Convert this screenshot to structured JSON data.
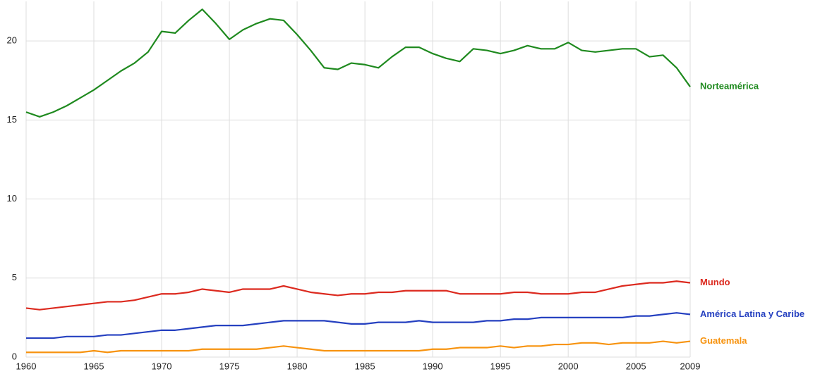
{
  "chart_data": {
    "type": "line",
    "x": [
      1960,
      1961,
      1962,
      1963,
      1964,
      1965,
      1966,
      1967,
      1968,
      1969,
      1970,
      1971,
      1972,
      1973,
      1974,
      1975,
      1976,
      1977,
      1978,
      1979,
      1980,
      1981,
      1982,
      1983,
      1984,
      1985,
      1986,
      1987,
      1988,
      1989,
      1990,
      1991,
      1992,
      1993,
      1994,
      1995,
      1996,
      1997,
      1998,
      1999,
      2000,
      2001,
      2002,
      2003,
      2004,
      2005,
      2006,
      2007,
      2008,
      2009
    ],
    "series": [
      {
        "name": "Norteamérica",
        "color": "#1f8a1f",
        "values": [
          15.5,
          15.2,
          15.5,
          15.9,
          16.4,
          16.9,
          17.5,
          18.1,
          18.6,
          19.3,
          20.6,
          20.5,
          21.3,
          22.0,
          21.1,
          20.1,
          20.7,
          21.1,
          21.4,
          21.3,
          20.4,
          19.4,
          18.3,
          18.2,
          18.6,
          18.5,
          18.3,
          19.0,
          19.6,
          19.6,
          19.2,
          18.9,
          18.7,
          19.5,
          19.4,
          19.2,
          19.4,
          19.7,
          19.5,
          19.5,
          19.9,
          19.4,
          19.3,
          19.4,
          19.5,
          19.5,
          19.0,
          19.1,
          18.3,
          17.1
        ]
      },
      {
        "name": "Mundo",
        "color": "#dc2a1f",
        "values": [
          3.1,
          3.0,
          3.1,
          3.2,
          3.3,
          3.4,
          3.5,
          3.5,
          3.6,
          3.8,
          4.0,
          4.0,
          4.1,
          4.3,
          4.2,
          4.1,
          4.3,
          4.3,
          4.3,
          4.5,
          4.3,
          4.1,
          4.0,
          3.9,
          4.0,
          4.0,
          4.1,
          4.1,
          4.2,
          4.2,
          4.2,
          4.2,
          4.0,
          4.0,
          4.0,
          4.0,
          4.1,
          4.1,
          4.0,
          4.0,
          4.0,
          4.1,
          4.1,
          4.3,
          4.5,
          4.6,
          4.7,
          4.7,
          4.8,
          4.7
        ]
      },
      {
        "name": "América Latina y Caribe",
        "color": "#2540c0",
        "values": [
          1.2,
          1.2,
          1.2,
          1.3,
          1.3,
          1.3,
          1.4,
          1.4,
          1.5,
          1.6,
          1.7,
          1.7,
          1.8,
          1.9,
          2.0,
          2.0,
          2.0,
          2.1,
          2.2,
          2.3,
          2.3,
          2.3,
          2.3,
          2.2,
          2.1,
          2.1,
          2.2,
          2.2,
          2.2,
          2.3,
          2.2,
          2.2,
          2.2,
          2.2,
          2.3,
          2.3,
          2.4,
          2.4,
          2.5,
          2.5,
          2.5,
          2.5,
          2.5,
          2.5,
          2.5,
          2.6,
          2.6,
          2.7,
          2.8,
          2.7
        ]
      },
      {
        "name": "Guatemala",
        "color": "#f7930f",
        "values": [
          0.3,
          0.3,
          0.3,
          0.3,
          0.3,
          0.4,
          0.3,
          0.4,
          0.4,
          0.4,
          0.4,
          0.4,
          0.4,
          0.5,
          0.5,
          0.5,
          0.5,
          0.5,
          0.6,
          0.7,
          0.6,
          0.5,
          0.4,
          0.4,
          0.4,
          0.4,
          0.4,
          0.4,
          0.4,
          0.4,
          0.5,
          0.5,
          0.6,
          0.6,
          0.6,
          0.7,
          0.6,
          0.7,
          0.7,
          0.8,
          0.8,
          0.9,
          0.9,
          0.8,
          0.9,
          0.9,
          0.9,
          1.0,
          0.9,
          1.0
        ]
      }
    ],
    "xlim": [
      1960,
      2009
    ],
    "xticks": [
      1960,
      1965,
      1970,
      1975,
      1980,
      1985,
      1990,
      1995,
      2000,
      2005,
      2009
    ],
    "ylim": [
      0,
      22.5
    ],
    "yticks": [
      0,
      5,
      10,
      15,
      20
    ],
    "grid": true
  }
}
